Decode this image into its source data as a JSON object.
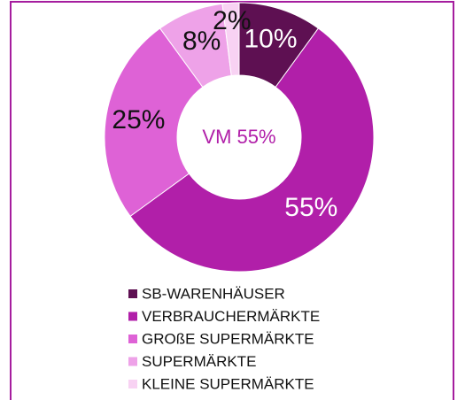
{
  "chart_data": {
    "type": "donut",
    "categories": [
      "SB-WARENHÄUSER",
      "VERBRAUCHERMÄRKTE",
      "GROßE SUPERMÄRKTE",
      "SUPERMÄRKTE",
      "KLEINE SUPERMÄRKTE"
    ],
    "values": [
      10,
      55,
      25,
      8,
      2
    ],
    "value_labels": [
      "10%",
      "55%",
      "25%",
      "8%",
      "2%"
    ],
    "colors": [
      "#5e1052",
      "#b11fa9",
      "#de62d6",
      "#eea2e8",
      "#f8d2f3"
    ],
    "center_label": "VM 55%",
    "legend": "bottom"
  }
}
